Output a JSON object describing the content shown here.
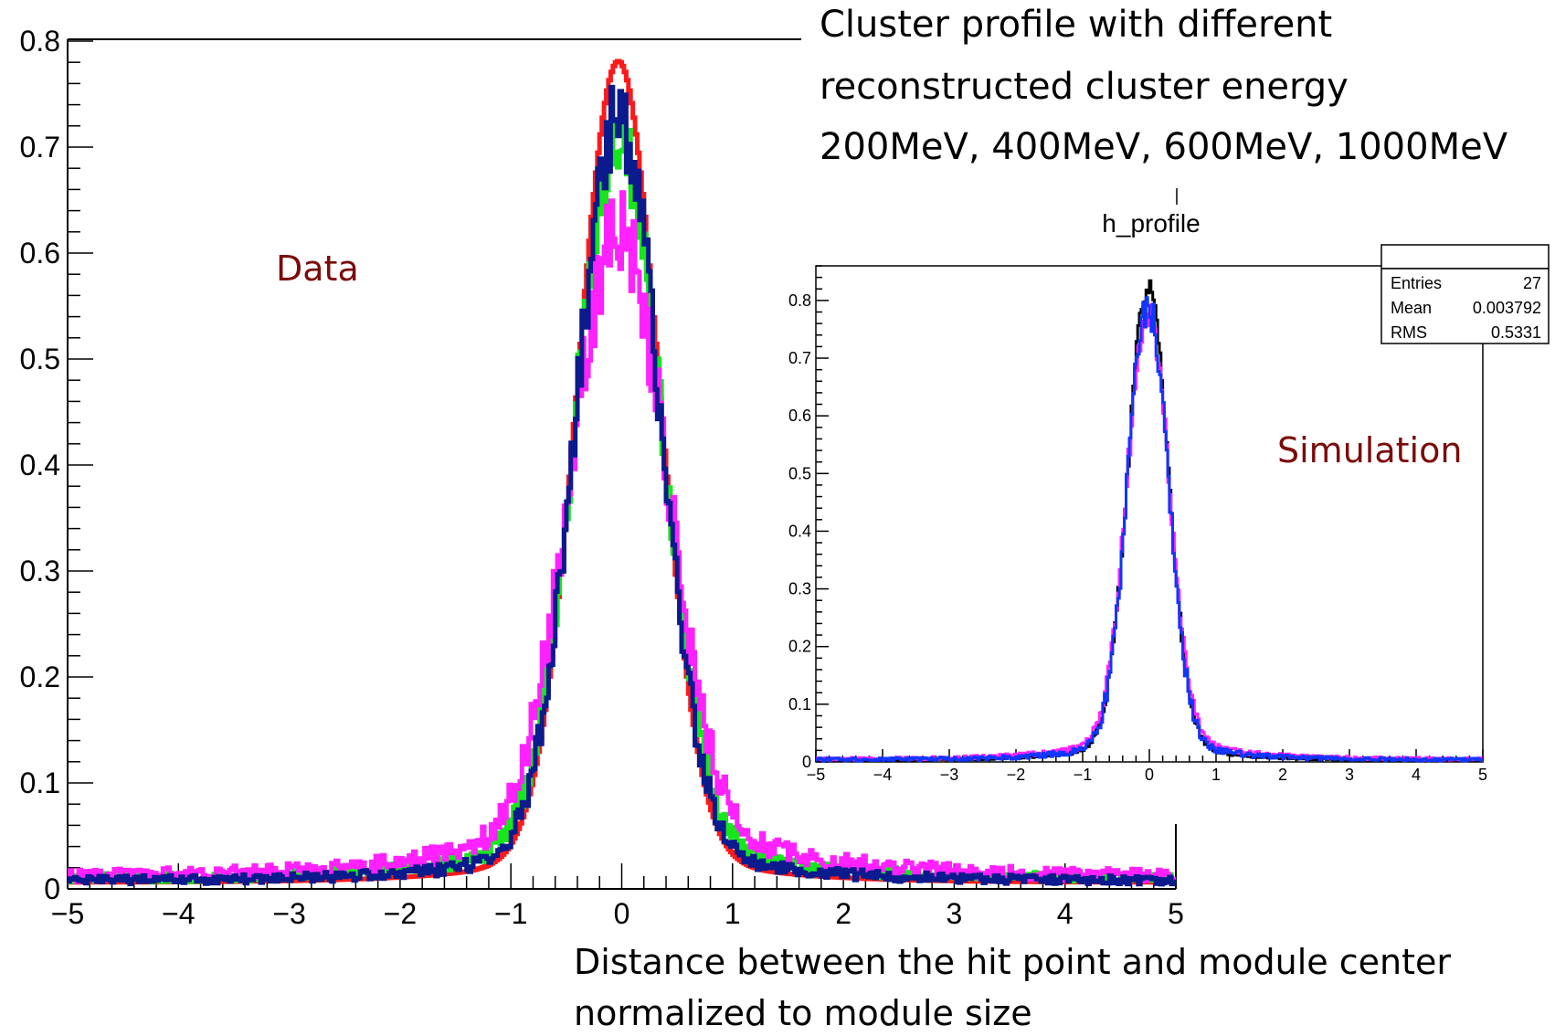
{
  "title_lines": [
    "Cluster profile with different",
    "reconstructed cluster energy",
    "200MeV, 400MeV, 600MeV, 1000MeV"
  ],
  "xlabel_lines": [
    "Distance between the hit point and module center",
    "normalized to module size"
  ],
  "data_label": "Data",
  "sim_label": "Simulation",
  "inset_title": "h_profile",
  "colors": {
    "label": "#7b0b0b",
    "red": "#ff1a1a",
    "green": "#17e61d",
    "magenta": "#ff22ff",
    "navy": "#0b1a8c",
    "blue": "#1036ff",
    "black": "#000000"
  },
  "stats": [
    {
      "label": "Entries",
      "value": "27"
    },
    {
      "label": "Mean",
      "value": "0.003792"
    },
    {
      "label": "RMS",
      "value": "0.5331"
    }
  ],
  "chart_data": [
    {
      "type": "line",
      "title": "Cluster profile with different reconstructed cluster energy 200MeV, 400MeV, 600MeV, 1000MeV",
      "xlabel": "Distance between the hit point and module center normalized to module size",
      "ylabel": "",
      "xlim": [
        -5,
        5
      ],
      "ylim": [
        0,
        0.8
      ],
      "x_ticks": [
        "−5",
        "−4",
        "−3",
        "−2",
        "−1",
        "0",
        "1",
        "2",
        "3",
        "4",
        "5"
      ],
      "y_ticks": [
        "0",
        "0.1",
        "0.2",
        "0.3",
        "0.4",
        "0.5",
        "0.6",
        "0.7",
        "0.8"
      ],
      "grid": false,
      "annotations": [
        "Data"
      ],
      "series": [
        {
          "color": "red",
          "amplitude": 0.775,
          "center": -0.03,
          "sigma": 0.36,
          "tail_amp": 0.05,
          "tail_width": 0.85,
          "noise": 0.0,
          "pedestal": 0.006
        },
        {
          "color": "green",
          "amplitude": 0.7,
          "center": -0.03,
          "sigma": 0.38,
          "tail_amp": 0.07,
          "tail_width": 0.95,
          "noise": 0.02,
          "pedestal": 0.01
        },
        {
          "color": "magenta",
          "amplitude": 0.61,
          "center": -0.03,
          "sigma": 0.42,
          "tail_amp": 0.09,
          "tail_width": 1.05,
          "noise": 0.025,
          "pedestal": 0.012
        },
        {
          "color": "navy",
          "amplitude": 0.72,
          "center": -0.03,
          "sigma": 0.37,
          "tail_amp": 0.06,
          "tail_width": 0.9,
          "noise": 0.02,
          "pedestal": 0.008
        }
      ]
    },
    {
      "type": "line",
      "title": "h_profile",
      "xlim": [
        -5,
        5
      ],
      "ylim": [
        0,
        0.86
      ],
      "x_ticks": [
        "−5",
        "−4",
        "−3",
        "−2",
        "−1",
        "0",
        "1",
        "2",
        "3",
        "4",
        "5"
      ],
      "y_ticks": [
        "0",
        "0.1",
        "0.2",
        "0.3",
        "0.4",
        "0.5",
        "0.6",
        "0.7",
        "0.8"
      ],
      "grid": false,
      "annotations": [
        "Simulation"
      ],
      "series": [
        {
          "color": "black",
          "amplitude": 0.82,
          "center": -0.02,
          "sigma": 0.3,
          "tail_amp": 0.05,
          "tail_width": 0.8,
          "noise": 0.01,
          "pedestal": 0.003
        },
        {
          "color": "magenta",
          "amplitude": 0.78,
          "center": -0.02,
          "sigma": 0.31,
          "tail_amp": 0.06,
          "tail_width": 0.9,
          "noise": 0.015,
          "pedestal": 0.005
        },
        {
          "color": "blue",
          "amplitude": 0.79,
          "center": -0.02,
          "sigma": 0.3,
          "tail_amp": 0.05,
          "tail_width": 0.85,
          "noise": 0.02,
          "pedestal": 0.004
        }
      ]
    }
  ]
}
